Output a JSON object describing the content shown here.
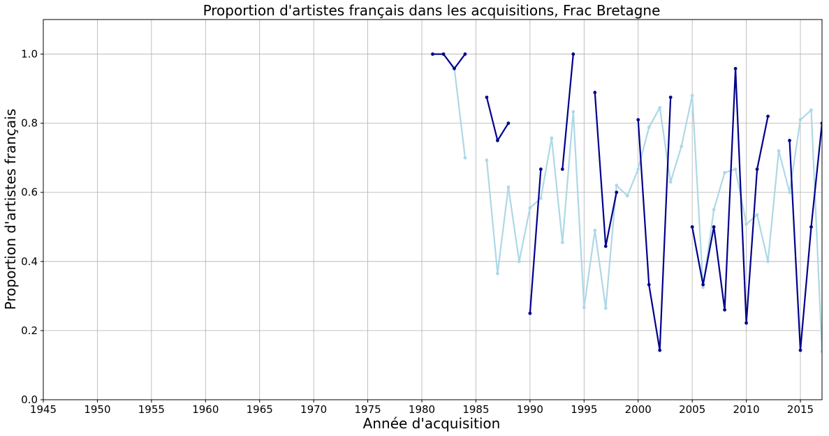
{
  "chart_data": {
    "type": "line",
    "title": "Proportion d'artistes français dans les acquisitions, Frac Bretagne",
    "xlabel": "Année d'acquisition",
    "ylabel": "Proportion d'artistes français",
    "xlim": [
      1945,
      2017
    ],
    "ylim": [
      0.0,
      1.1
    ],
    "xticks": [
      1945,
      1950,
      1955,
      1960,
      1965,
      1970,
      1975,
      1980,
      1985,
      1990,
      1995,
      2000,
      2005,
      2010,
      2015
    ],
    "yticks": [
      "0.0",
      "0.2",
      "0.4",
      "0.6",
      "0.8",
      "1.0"
    ],
    "grid": true,
    "series": [
      {
        "color": "#add8e6",
        "points": [
          [
            1981,
            1.0
          ],
          [
            1982,
            1.0
          ],
          [
            1983,
            0.96
          ],
          [
            1984,
            0.7
          ],
          [
            1985,
            null
          ],
          [
            1986,
            0.693
          ],
          [
            1987,
            0.365
          ],
          [
            1988,
            0.615
          ],
          [
            1989,
            0.4
          ],
          [
            1990,
            0.555
          ],
          [
            1991,
            0.583
          ],
          [
            1992,
            0.757
          ],
          [
            1993,
            0.455
          ],
          [
            1994,
            0.833
          ],
          [
            1995,
            0.267
          ],
          [
            1996,
            0.49
          ],
          [
            1997,
            0.265
          ],
          [
            1998,
            0.62
          ],
          [
            1999,
            0.59
          ],
          [
            2000,
            0.667
          ],
          [
            2001,
            0.788
          ],
          [
            2002,
            0.845
          ],
          [
            2003,
            0.63
          ],
          [
            2004,
            0.733
          ],
          [
            2005,
            0.88
          ],
          [
            2006,
            0.325
          ],
          [
            2007,
            0.55
          ],
          [
            2008,
            0.657
          ],
          [
            2009,
            0.667
          ],
          [
            2010,
            0.508
          ],
          [
            2011,
            0.535
          ],
          [
            2012,
            0.4
          ],
          [
            2013,
            0.72
          ],
          [
            2014,
            0.6
          ],
          [
            2015,
            0.81
          ],
          [
            2016,
            0.838
          ],
          [
            2017,
            0.14
          ]
        ]
      },
      {
        "color": "#00008b",
        "points": [
          [
            1981,
            1.0
          ],
          [
            1982,
            1.0
          ],
          [
            1983,
            0.958
          ],
          [
            1984,
            1.0
          ],
          [
            1985,
            null
          ],
          [
            1986,
            0.875
          ],
          [
            1987,
            0.75
          ],
          [
            1988,
            0.8
          ],
          [
            1989,
            null
          ],
          [
            1990,
            0.25
          ],
          [
            1991,
            0.667
          ],
          [
            1992,
            null
          ],
          [
            1993,
            0.667
          ],
          [
            1994,
            1.0
          ],
          [
            1995,
            null
          ],
          [
            1996,
            0.889
          ],
          [
            1997,
            0.444
          ],
          [
            1998,
            0.6
          ],
          [
            1999,
            null
          ],
          [
            2000,
            0.81
          ],
          [
            2001,
            0.333
          ],
          [
            2002,
            0.143
          ],
          [
            2003,
            0.875
          ],
          [
            2004,
            null
          ],
          [
            2005,
            0.5
          ],
          [
            2006,
            0.333
          ],
          [
            2007,
            0.5
          ],
          [
            2008,
            0.26
          ],
          [
            2009,
            0.958
          ],
          [
            2010,
            0.222
          ],
          [
            2011,
            0.667
          ],
          [
            2012,
            0.82
          ],
          [
            2013,
            null
          ],
          [
            2014,
            0.75
          ],
          [
            2015,
            0.143
          ],
          [
            2016,
            0.5
          ],
          [
            2017,
            0.8
          ]
        ]
      }
    ]
  }
}
